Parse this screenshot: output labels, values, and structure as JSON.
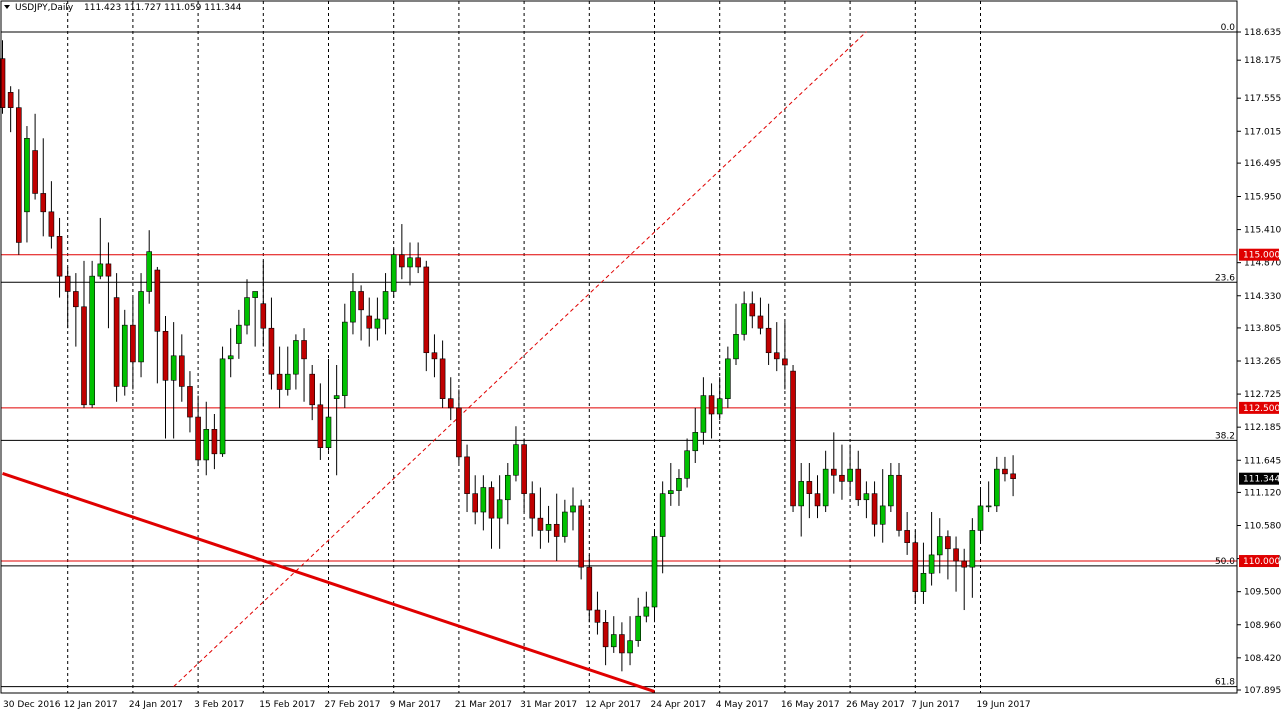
{
  "header": {
    "symbol": "USDJPY,Daily",
    "ohlc": "111.423 111.727 111.059 111.344"
  },
  "colors": {
    "bull": "#00c000",
    "bear": "#c00000",
    "wick": "#000000",
    "level_red": "#e00000",
    "grid_dash": "#000000",
    "current_bg": "#000000",
    "current_fg": "#ffffff",
    "red_box_bg": "#e00000",
    "red_box_fg": "#ffffff"
  },
  "chart_data": {
    "type": "candlestick",
    "symbol": "USDJPY",
    "timeframe": "Daily",
    "ylim": [
      107.895,
      118.9
    ],
    "y_ticks": [
      "118.635",
      "118.175",
      "117.555",
      "117.015",
      "116.495",
      "115.950",
      "115.410",
      "114.870",
      "114.330",
      "113.805",
      "113.265",
      "112.725",
      "112.185",
      "111.645",
      "111.120",
      "110.580",
      "110.040",
      "109.500",
      "108.960",
      "108.420",
      "107.895"
    ],
    "x_labels": [
      {
        "label": "30 Dec 2016",
        "bar": 0
      },
      {
        "label": "12 Jan 2017",
        "bar": 8
      },
      {
        "label": "24 Jan 2017",
        "bar": 16
      },
      {
        "label": "3 Feb 2017",
        "bar": 24
      },
      {
        "label": "15 Feb 2017",
        "bar": 32
      },
      {
        "label": "27 Feb 2017",
        "bar": 40
      },
      {
        "label": "9 Mar 2017",
        "bar": 48
      },
      {
        "label": "21 Mar 2017",
        "bar": 56
      },
      {
        "label": "31 Mar 2017",
        "bar": 64
      },
      {
        "label": "12 Apr 2017",
        "bar": 72
      },
      {
        "label": "24 Apr 2017",
        "bar": 80
      },
      {
        "label": "4 May 2017",
        "bar": 88
      },
      {
        "label": "16 May 2017",
        "bar": 96
      },
      {
        "label": "26 May 2017",
        "bar": 104
      },
      {
        "label": "7 Jun 2017",
        "bar": 112
      },
      {
        "label": "19 Jun 2017",
        "bar": 120
      }
    ],
    "horizontal_levels": [
      {
        "price": 115.0,
        "label": "115.000",
        "kind": "support_resistance"
      },
      {
        "price": 112.5,
        "label": "112.500",
        "kind": "support_resistance"
      },
      {
        "price": 110.0,
        "label": "110.000",
        "kind": "support_resistance"
      }
    ],
    "fibonacci": [
      {
        "label": "0.0",
        "price": 118.635
      },
      {
        "label": "23.6",
        "price": 114.55
      },
      {
        "label": "38.2",
        "price": 111.97
      },
      {
        "label": "50.0",
        "price": 109.92
      },
      {
        "label": "61.8",
        "price": 107.95
      }
    ],
    "current_price": "111.344",
    "trendlines": [
      {
        "from": {
          "bar": 0,
          "price": 111.43
        },
        "to": {
          "bar": 80,
          "price": 107.87
        },
        "style": "solid"
      },
      {
        "from": {
          "bar": 21,
          "price": 107.95
        },
        "to": {
          "bar": 106,
          "price": 118.64
        },
        "style": "dashed"
      }
    ],
    "candles": [
      [
        118.2,
        117.4,
        118.5,
        117.3
      ],
      [
        117.65,
        117.4,
        117.75,
        117.0
      ],
      [
        117.4,
        115.2,
        117.7,
        115.0
      ],
      [
        115.7,
        116.9,
        117.1,
        115.2
      ],
      [
        116.7,
        116.0,
        117.3,
        115.9
      ],
      [
        116.0,
        115.7,
        116.9,
        115.3
      ],
      [
        115.7,
        115.3,
        116.2,
        115.1
      ],
      [
        115.3,
        114.65,
        115.6,
        114.3
      ],
      [
        114.65,
        114.4,
        114.8,
        113.8
      ],
      [
        114.4,
        114.15,
        114.7,
        113.5
      ],
      [
        114.15,
        112.55,
        114.9,
        112.5
      ],
      [
        112.55,
        114.65,
        114.9,
        112.5
      ],
      [
        114.65,
        114.85,
        115.6,
        114.6
      ],
      [
        114.85,
        114.65,
        115.2,
        113.8
      ],
      [
        114.3,
        112.85,
        114.7,
        112.6
      ],
      [
        112.85,
        113.85,
        114.1,
        112.7
      ],
      [
        113.85,
        113.25,
        114.3,
        112.8
      ],
      [
        113.25,
        114.4,
        114.7,
        113.0
      ],
      [
        114.4,
        115.05,
        115.4,
        114.2
      ],
      [
        114.75,
        113.75,
        114.8,
        112.9
      ],
      [
        113.75,
        112.95,
        114.0,
        112.0
      ],
      [
        112.95,
        113.35,
        113.9,
        112.0
      ],
      [
        113.35,
        112.85,
        113.7,
        112.6
      ],
      [
        112.85,
        112.35,
        113.1,
        112.1
      ],
      [
        112.35,
        111.65,
        112.7,
        111.55
      ],
      [
        111.65,
        112.15,
        112.6,
        111.4
      ],
      [
        112.15,
        111.75,
        112.4,
        111.5
      ],
      [
        111.75,
        113.3,
        113.5,
        111.7
      ],
      [
        113.3,
        113.35,
        113.8,
        113.0
      ],
      [
        113.55,
        113.85,
        114.1,
        113.3
      ],
      [
        113.85,
        114.3,
        114.6,
        113.7
      ],
      [
        114.3,
        114.4,
        114.4,
        113.5
      ],
      [
        114.2,
        113.8,
        114.9,
        113.5
      ],
      [
        113.8,
        113.05,
        114.3,
        112.8
      ],
      [
        113.05,
        112.8,
        113.5,
        112.5
      ],
      [
        112.8,
        113.05,
        113.5,
        112.7
      ],
      [
        113.05,
        113.6,
        113.7,
        112.8
      ],
      [
        113.6,
        113.3,
        113.8,
        112.6
      ],
      [
        113.05,
        112.55,
        113.2,
        112.3
      ],
      [
        112.55,
        111.85,
        112.9,
        111.65
      ],
      [
        111.85,
        112.35,
        113.3,
        111.8
      ],
      [
        112.65,
        112.7,
        113.2,
        111.4
      ],
      [
        112.7,
        113.9,
        114.2,
        112.5
      ],
      [
        113.9,
        114.4,
        114.7,
        113.7
      ],
      [
        114.4,
        114.1,
        114.5,
        113.6
      ],
      [
        114.0,
        113.8,
        114.3,
        113.5
      ],
      [
        113.8,
        113.95,
        114.3,
        113.6
      ],
      [
        113.95,
        114.4,
        114.7,
        113.7
      ],
      [
        114.4,
        115.0,
        115.1,
        114.3
      ],
      [
        115.0,
        114.8,
        115.5,
        114.6
      ],
      [
        114.8,
        114.95,
        115.2,
        114.5
      ],
      [
        114.95,
        114.8,
        115.2,
        114.7
      ],
      [
        114.8,
        113.4,
        114.9,
        113.1
      ],
      [
        113.4,
        113.3,
        113.7,
        113.0
      ],
      [
        113.3,
        112.65,
        113.6,
        112.5
      ],
      [
        112.65,
        112.5,
        113.0,
        112.3
      ],
      [
        112.5,
        111.7,
        112.8,
        111.6
      ],
      [
        111.7,
        111.1,
        111.9,
        110.8
      ],
      [
        111.1,
        110.8,
        111.4,
        110.6
      ],
      [
        110.8,
        111.2,
        111.4,
        110.5
      ],
      [
        111.2,
        110.7,
        111.3,
        110.2
      ],
      [
        110.7,
        111.0,
        111.4,
        110.2
      ],
      [
        111.0,
        111.4,
        111.6,
        110.6
      ],
      [
        111.4,
        111.9,
        112.2,
        111.3
      ],
      [
        111.9,
        111.1,
        112.0,
        110.8
      ],
      [
        111.1,
        110.7,
        111.3,
        110.4
      ],
      [
        110.7,
        110.5,
        111.2,
        110.2
      ],
      [
        110.5,
        110.6,
        110.9,
        110.3
      ],
      [
        110.6,
        110.4,
        111.1,
        110.0
      ],
      [
        110.4,
        110.8,
        111.0,
        110.3
      ],
      [
        110.8,
        110.9,
        111.2,
        110.5
      ],
      [
        110.9,
        109.9,
        111.0,
        109.7
      ],
      [
        109.9,
        109.2,
        110.1,
        109.0
      ],
      [
        109.2,
        109.0,
        109.5,
        108.8
      ],
      [
        109.0,
        108.6,
        109.2,
        108.3
      ],
      [
        108.6,
        108.8,
        109.1,
        108.5
      ],
      [
        108.8,
        108.5,
        109.0,
        108.2
      ],
      [
        108.5,
        108.7,
        109.1,
        108.3
      ],
      [
        108.7,
        109.1,
        109.4,
        108.6
      ],
      [
        109.1,
        109.25,
        109.5,
        109.0
      ],
      [
        109.25,
        110.4,
        110.5,
        109.0
      ],
      [
        110.4,
        111.1,
        111.3,
        109.8
      ],
      [
        111.1,
        111.15,
        111.6,
        110.9
      ],
      [
        111.15,
        111.35,
        111.5,
        110.9
      ],
      [
        111.35,
        111.8,
        112.0,
        111.2
      ],
      [
        111.8,
        112.1,
        112.5,
        111.6
      ],
      [
        112.1,
        112.7,
        113.0,
        111.9
      ],
      [
        112.7,
        112.4,
        112.9,
        112.0
      ],
      [
        112.4,
        112.65,
        113.0,
        112.3
      ],
      [
        112.65,
        113.3,
        113.5,
        112.5
      ],
      [
        113.3,
        113.7,
        114.2,
        113.2
      ],
      [
        113.7,
        114.2,
        114.4,
        113.6
      ],
      [
        114.2,
        114.0,
        114.4,
        113.8
      ],
      [
        114.0,
        113.8,
        114.3,
        113.7
      ],
      [
        113.8,
        113.4,
        114.2,
        113.2
      ],
      [
        113.4,
        113.3,
        113.9,
        113.1
      ],
      [
        113.3,
        113.2,
        113.9,
        112.8
      ],
      [
        113.1,
        110.9,
        113.2,
        110.8
      ],
      [
        110.9,
        111.3,
        111.6,
        110.4
      ],
      [
        111.3,
        111.1,
        111.6,
        110.7
      ],
      [
        111.1,
        110.9,
        111.4,
        110.7
      ],
      [
        110.9,
        111.5,
        111.8,
        110.8
      ],
      [
        111.5,
        111.4,
        112.1,
        111.1
      ],
      [
        111.4,
        111.3,
        111.9,
        111.0
      ],
      [
        111.3,
        111.5,
        111.9,
        111.1
      ],
      [
        111.5,
        111.0,
        111.8,
        110.9
      ],
      [
        111.0,
        111.1,
        111.3,
        110.7
      ],
      [
        111.1,
        110.6,
        111.3,
        110.4
      ],
      [
        110.6,
        110.9,
        111.5,
        110.3
      ],
      [
        110.9,
        111.4,
        111.6,
        110.8
      ],
      [
        111.4,
        110.5,
        111.6,
        110.4
      ],
      [
        110.5,
        110.3,
        110.8,
        110.1
      ],
      [
        110.3,
        109.5,
        110.5,
        109.3
      ],
      [
        109.5,
        109.8,
        110.3,
        109.3
      ],
      [
        109.8,
        110.1,
        110.8,
        109.6
      ],
      [
        110.1,
        110.4,
        110.7,
        109.8
      ],
      [
        110.4,
        110.2,
        110.5,
        109.7
      ],
      [
        110.2,
        110.0,
        110.4,
        109.5
      ],
      [
        110.0,
        109.9,
        110.2,
        109.2
      ],
      [
        109.9,
        110.5,
        110.7,
        109.4
      ],
      [
        110.5,
        110.9,
        111.2,
        110.3
      ],
      [
        110.9,
        110.9,
        111.3,
        110.8
      ],
      [
        110.9,
        111.5,
        111.7,
        110.8
      ],
      [
        111.5,
        111.423,
        111.7,
        111.3
      ],
      [
        111.423,
        111.344,
        111.727,
        111.059
      ]
    ]
  }
}
